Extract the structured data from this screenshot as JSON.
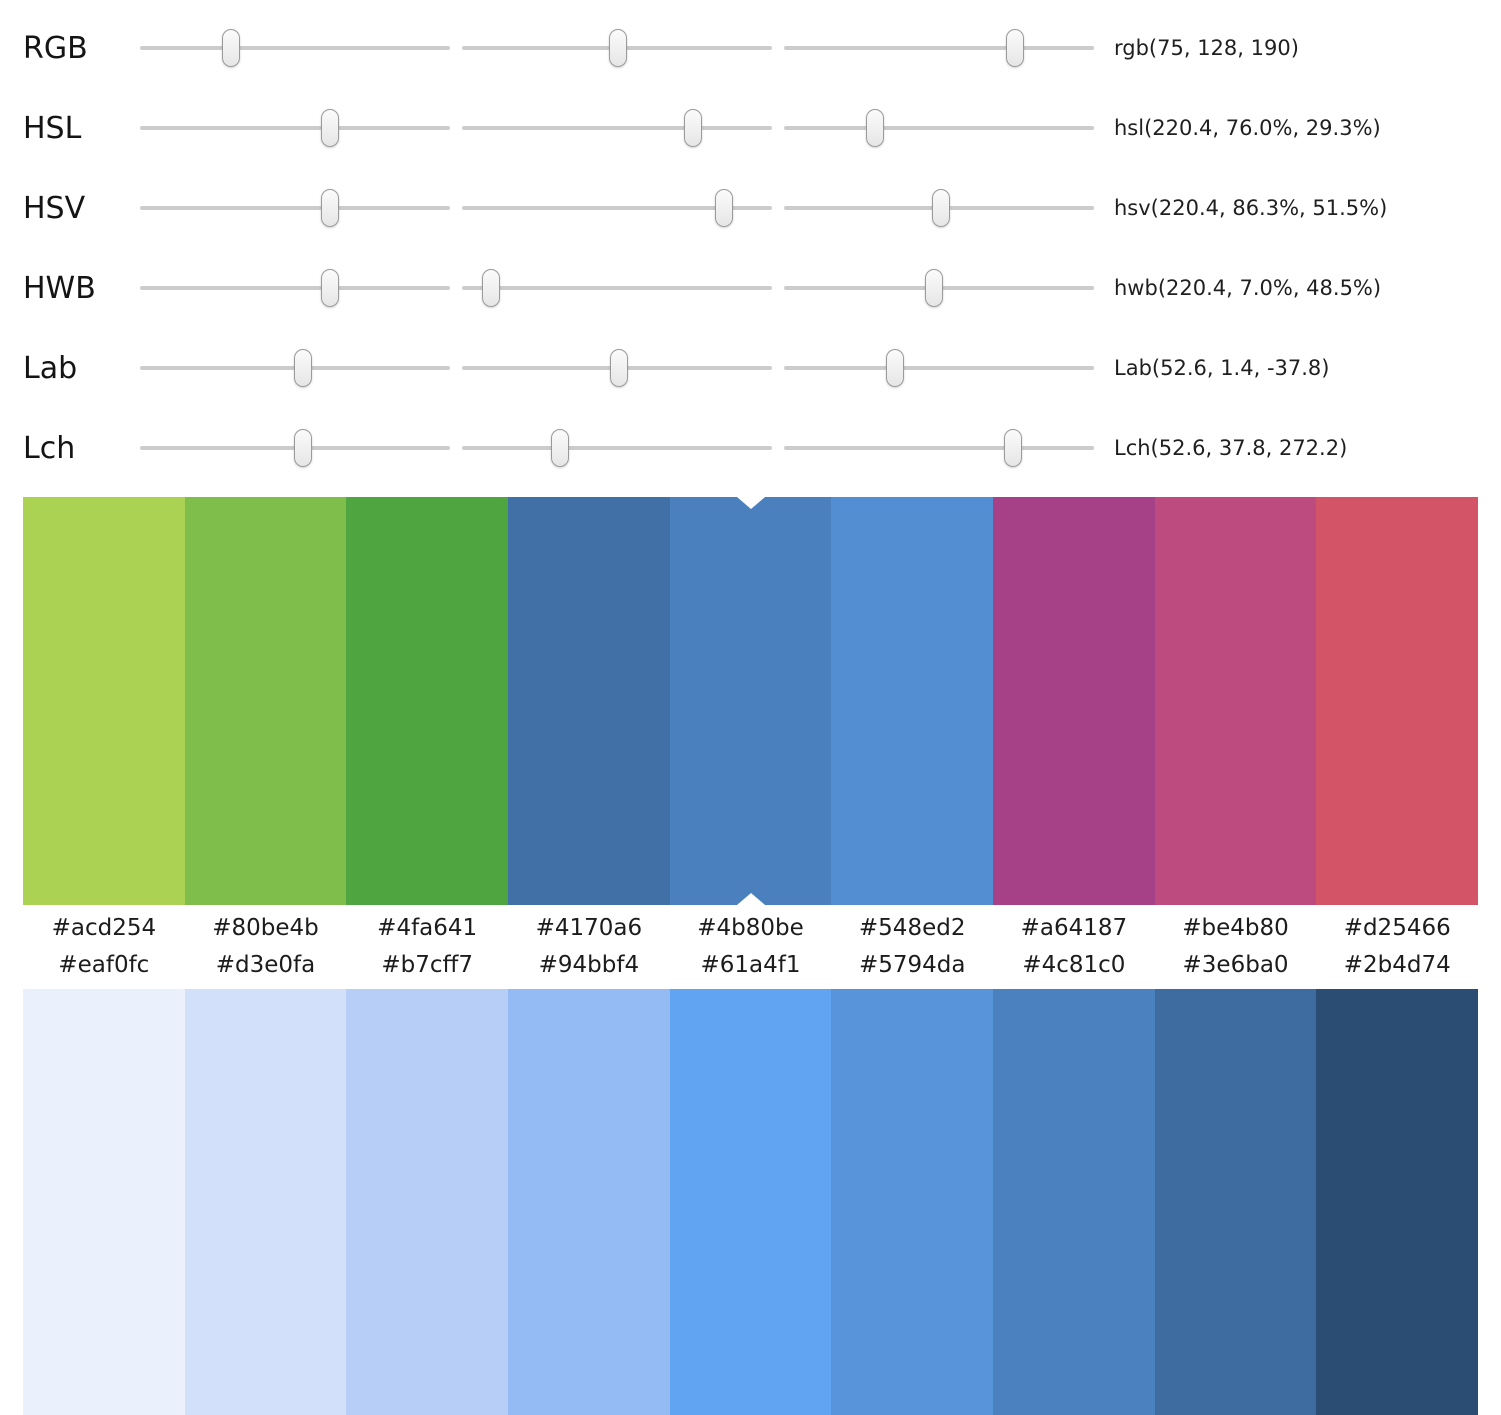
{
  "sliders": {
    "rows": [
      {
        "id": "rgb",
        "label": "RGB",
        "value": "rgb(75, 128, 190)",
        "thumbs_pct": [
          29.4,
          50.2,
          74.5
        ]
      },
      {
        "id": "hsl",
        "label": "HSL",
        "value": "hsl(220.4, 76.0%, 29.3%)",
        "thumbs_pct": [
          61.2,
          74.5,
          29.3
        ]
      },
      {
        "id": "hsv",
        "label": "HSV",
        "value": "hsv(220.4, 86.3%, 51.5%)",
        "thumbs_pct": [
          61.2,
          84.5,
          50.5
        ]
      },
      {
        "id": "hwb",
        "label": "HWB",
        "value": "hwb(220.4, 7.0%, 48.5%)",
        "thumbs_pct": [
          61.2,
          9.5,
          48.5
        ]
      },
      {
        "id": "lab",
        "label": "Lab",
        "value": "Lab(52.6, 1.4, -37.8)",
        "thumbs_pct": [
          52.6,
          50.5,
          35.8
        ]
      },
      {
        "id": "lch",
        "label": "Lch",
        "value": "Lch(52.6, 37.8, 272.2)",
        "thumbs_pct": [
          52.6,
          31.5,
          74.0
        ]
      }
    ]
  },
  "hue_palette": {
    "selected_index": 4,
    "notch_color": "#ffffff",
    "swatches": [
      "#acd254",
      "#80be4b",
      "#4fa641",
      "#4170a6",
      "#4b80be",
      "#548ed2",
      "#a64187",
      "#be4b80",
      "#d25466"
    ]
  },
  "tint_palette": {
    "swatches": [
      "#eaf0fc",
      "#d3e0fa",
      "#b7cff7",
      "#94bbf4",
      "#61a4f1",
      "#5794da",
      "#4c81c0",
      "#3e6ba0",
      "#2b4d74"
    ]
  },
  "theme": {
    "background": "#ffffff",
    "track_color": "#cccccc",
    "thumb_fill": "#f2f2f2",
    "thumb_border": "#9a9a9a",
    "text_color": "#1f1f1f"
  }
}
